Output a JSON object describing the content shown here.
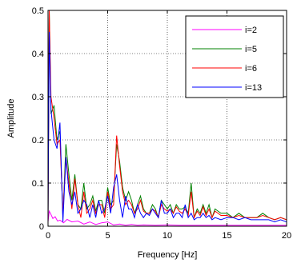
{
  "chart_data": {
    "type": "line",
    "title": "",
    "xlabel": "Frequency  [Hz]",
    "ylabel": "Amplitude",
    "xlim": [
      0,
      20
    ],
    "ylim": [
      0,
      0.5
    ],
    "xticks": [
      0,
      5,
      10,
      15,
      20
    ],
    "yticks": [
      0,
      0.1,
      0.2,
      0.3,
      0.4,
      0.5
    ],
    "xtick_labels": [
      "0",
      "5",
      "10",
      "15",
      "20"
    ],
    "ytick_labels": [
      "0",
      "0.1",
      "0.2",
      "0.3",
      "0.4",
      "0.5"
    ],
    "grid": true,
    "grid_style": "dotted",
    "legend_position": "top-right",
    "series": [
      {
        "name": "i=2",
        "color": "#ff00ff",
        "x": [
          0,
          0.1,
          0.2,
          0.4,
          0.6,
          0.8,
          1,
          1.3,
          1.6,
          2,
          2.5,
          3,
          3.5,
          4,
          4.5,
          5,
          5.5,
          6,
          6.5,
          7,
          7.5,
          8,
          9,
          10,
          11,
          12,
          13,
          14,
          15,
          16,
          17,
          18,
          19,
          20
        ],
        "y": [
          0.01,
          0.035,
          0.03,
          0.018,
          0.022,
          0.012,
          0.014,
          0.008,
          0.016,
          0.01,
          0.012,
          0.005,
          0.01,
          0.004,
          0.008,
          0.01,
          0.003,
          0.005,
          0.002,
          0.004,
          0.002,
          0.003,
          0.002,
          0.003,
          0.002,
          0.002,
          0.002,
          0.002,
          0.002,
          0.002,
          0.002,
          0.002,
          0.002,
          0.002
        ]
      },
      {
        "name": "i=5",
        "color": "#008000",
        "x": [
          0,
          0.1,
          0.25,
          0.5,
          0.75,
          1,
          1.25,
          1.5,
          1.75,
          2,
          2.25,
          2.5,
          2.75,
          3,
          3.25,
          3.5,
          3.75,
          4,
          4.25,
          4.5,
          4.75,
          5,
          5.25,
          5.5,
          5.75,
          6,
          6.25,
          6.5,
          6.75,
          7,
          7.25,
          7.5,
          7.75,
          8,
          8.25,
          8.5,
          8.75,
          9,
          9.25,
          9.5,
          9.75,
          10,
          10.25,
          10.5,
          10.75,
          11,
          11.25,
          11.5,
          11.75,
          12,
          12.25,
          12.5,
          12.75,
          13,
          13.25,
          13.5,
          13.75,
          14,
          14.5,
          15,
          15.5,
          16,
          16.5,
          17,
          17.5,
          18,
          18.5,
          19,
          19.5,
          20
        ],
        "y": [
          0.01,
          0.5,
          0.26,
          0.28,
          0.2,
          0.22,
          0.02,
          0.19,
          0.12,
          0.06,
          0.12,
          0.05,
          0.04,
          0.1,
          0.04,
          0.05,
          0.07,
          0.035,
          0.06,
          0.06,
          0.03,
          0.09,
          0.05,
          0.06,
          0.19,
          0.15,
          0.09,
          0.06,
          0.08,
          0.06,
          0.03,
          0.05,
          0.07,
          0.04,
          0.03,
          0.03,
          0.05,
          0.04,
          0.02,
          0.06,
          0.05,
          0.04,
          0.05,
          0.03,
          0.05,
          0.04,
          0.04,
          0.045,
          0.03,
          0.1,
          0.02,
          0.04,
          0.03,
          0.05,
          0.03,
          0.05,
          0.02,
          0.04,
          0.03,
          0.03,
          0.02,
          0.03,
          0.02,
          0.02,
          0.02,
          0.03,
          0.02,
          0.015,
          0.02,
          0.015
        ]
      },
      {
        "name": "i=6",
        "color": "#ff0000",
        "x": [
          0,
          0.1,
          0.25,
          0.5,
          0.75,
          1,
          1.25,
          1.5,
          1.75,
          2,
          2.25,
          2.5,
          2.75,
          3,
          3.25,
          3.5,
          3.75,
          4,
          4.25,
          4.5,
          4.75,
          5,
          5.25,
          5.5,
          5.75,
          6,
          6.25,
          6.5,
          6.75,
          7,
          7.25,
          7.5,
          7.75,
          8,
          8.25,
          8.5,
          8.75,
          9,
          9.25,
          9.5,
          9.75,
          10,
          10.25,
          10.5,
          10.75,
          11,
          11.25,
          11.5,
          11.75,
          12,
          12.25,
          12.5,
          12.75,
          13,
          13.25,
          13.5,
          13.75,
          14,
          14.5,
          15,
          15.5,
          16,
          16.5,
          17,
          17.5,
          18,
          18.5,
          19,
          19.5,
          20
        ],
        "y": [
          0.01,
          0.5,
          0.3,
          0.25,
          0.19,
          0.2,
          0.03,
          0.16,
          0.1,
          0.04,
          0.11,
          0.05,
          0.02,
          0.08,
          0.03,
          0.04,
          0.06,
          0.03,
          0.05,
          0.05,
          0.02,
          0.08,
          0.04,
          0.05,
          0.21,
          0.14,
          0.08,
          0.05,
          0.06,
          0.05,
          0.03,
          0.04,
          0.06,
          0.035,
          0.03,
          0.03,
          0.04,
          0.035,
          0.02,
          0.05,
          0.04,
          0.035,
          0.04,
          0.03,
          0.045,
          0.035,
          0.03,
          0.04,
          0.025,
          0.08,
          0.02,
          0.035,
          0.025,
          0.045,
          0.025,
          0.04,
          0.02,
          0.035,
          0.025,
          0.025,
          0.02,
          0.025,
          0.02,
          0.02,
          0.02,
          0.025,
          0.02,
          0.015,
          0.02,
          0.015
        ]
      },
      {
        "name": "i=13",
        "color": "#0000ff",
        "x": [
          0,
          0.1,
          0.25,
          0.5,
          0.75,
          1,
          1.25,
          1.5,
          1.75,
          2,
          2.25,
          2.5,
          2.75,
          3,
          3.25,
          3.5,
          3.75,
          4,
          4.25,
          4.5,
          4.75,
          5,
          5.25,
          5.5,
          5.75,
          6,
          6.25,
          6.5,
          6.75,
          7,
          7.25,
          7.5,
          7.75,
          8,
          8.25,
          8.5,
          8.75,
          9,
          9.25,
          9.5,
          9.75,
          10,
          10.25,
          10.5,
          10.75,
          11,
          11.25,
          11.5,
          11.75,
          12,
          12.25,
          12.5,
          12.75,
          13,
          13.25,
          13.5,
          13.75,
          14,
          14.5,
          15,
          15.5,
          16,
          16.5,
          17,
          17.5,
          18,
          18.5,
          19,
          19.5,
          20
        ],
        "y": [
          0.01,
          0.45,
          0.27,
          0.2,
          0.18,
          0.24,
          0.01,
          0.16,
          0.08,
          0.05,
          0.08,
          0.03,
          0.04,
          0.06,
          0.05,
          0.02,
          0.05,
          0.02,
          0.06,
          0.03,
          0.04,
          0.07,
          0.03,
          0.09,
          0.12,
          0.06,
          0.02,
          0.07,
          0.04,
          0.04,
          0.02,
          0.05,
          0.03,
          0.02,
          0.03,
          0.025,
          0.04,
          0.03,
          0.02,
          0.06,
          0.03,
          0.03,
          0.04,
          0.02,
          0.03,
          0.03,
          0.02,
          0.05,
          0.02,
          0.03,
          0.015,
          0.02,
          0.02,
          0.03,
          0.02,
          0.025,
          0.015,
          0.02,
          0.015,
          0.02,
          0.02,
          0.015,
          0.02,
          0.015,
          0.015,
          0.015,
          0.015,
          0.01,
          0.015,
          0.01
        ]
      }
    ]
  }
}
